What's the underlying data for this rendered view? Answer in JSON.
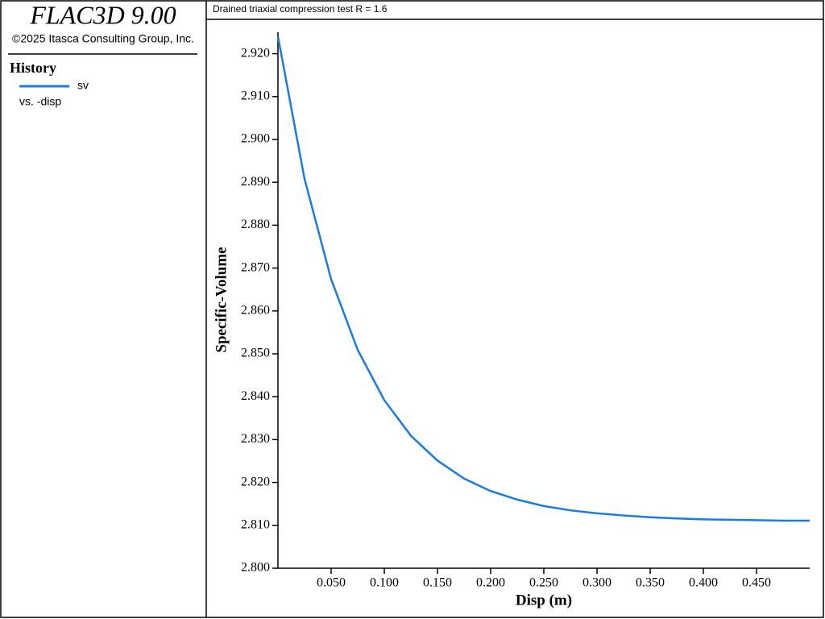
{
  "panel": {
    "app": "FLAC3D 9.00",
    "copyright": "©2025 Itasca Consulting Group, Inc.",
    "heading": "History",
    "vs": "vs. -disp"
  },
  "chart_data": {
    "type": "line",
    "title": "Drained triaxial compression test R = 1.6",
    "x_label": "Disp (m)",
    "y_label": "Specific-Volume",
    "x": [
      0,
      0.025,
      0.05,
      0.075,
      0.1,
      0.125,
      0.15,
      0.175,
      0.2,
      0.225,
      0.25,
      0.275,
      0.3,
      0.325,
      0.35,
      0.375,
      0.4,
      0.425,
      0.45,
      0.475,
      0.5
    ],
    "series": [
      {
        "name": "sv",
        "color": "#1a7ce0",
        "values": [
          2.924,
          2.8908,
          2.8674,
          2.8509,
          2.8392,
          2.8309,
          2.8251,
          2.8209,
          2.818,
          2.816,
          2.8145,
          2.8135,
          2.8128,
          2.8123,
          2.8119,
          2.8116,
          2.8114,
          2.8113,
          2.8112,
          2.8111,
          2.8111
        ]
      }
    ],
    "xlim": [
      0,
      0.5
    ],
    "ylim": [
      2.8,
      2.925
    ],
    "xticks": [
      {
        "value": 0.05,
        "label": "0.050"
      },
      {
        "value": 0.1,
        "label": "0.100"
      },
      {
        "value": 0.15,
        "label": "0.150"
      },
      {
        "value": 0.2,
        "label": "0.200"
      },
      {
        "value": 0.25,
        "label": "0.250"
      },
      {
        "value": 0.3,
        "label": "0.300"
      },
      {
        "value": 0.35,
        "label": "0.350"
      },
      {
        "value": 0.4,
        "label": "0.400"
      },
      {
        "value": 0.45,
        "label": "0.450"
      }
    ],
    "yticks": [
      {
        "value": 2.8,
        "label": "2.800"
      },
      {
        "value": 2.81,
        "label": "2.810"
      },
      {
        "value": 2.82,
        "label": "2.820"
      },
      {
        "value": 2.83,
        "label": "2.830"
      },
      {
        "value": 2.84,
        "label": "2.840"
      },
      {
        "value": 2.85,
        "label": "2.850"
      },
      {
        "value": 2.86,
        "label": "2.860"
      },
      {
        "value": 2.87,
        "label": "2.870"
      },
      {
        "value": 2.88,
        "label": "2.880"
      },
      {
        "value": 2.89,
        "label": "2.890"
      },
      {
        "value": 2.9,
        "label": "2.900"
      },
      {
        "value": 2.91,
        "label": "2.910"
      },
      {
        "value": 2.92,
        "label": "2.920"
      }
    ]
  }
}
